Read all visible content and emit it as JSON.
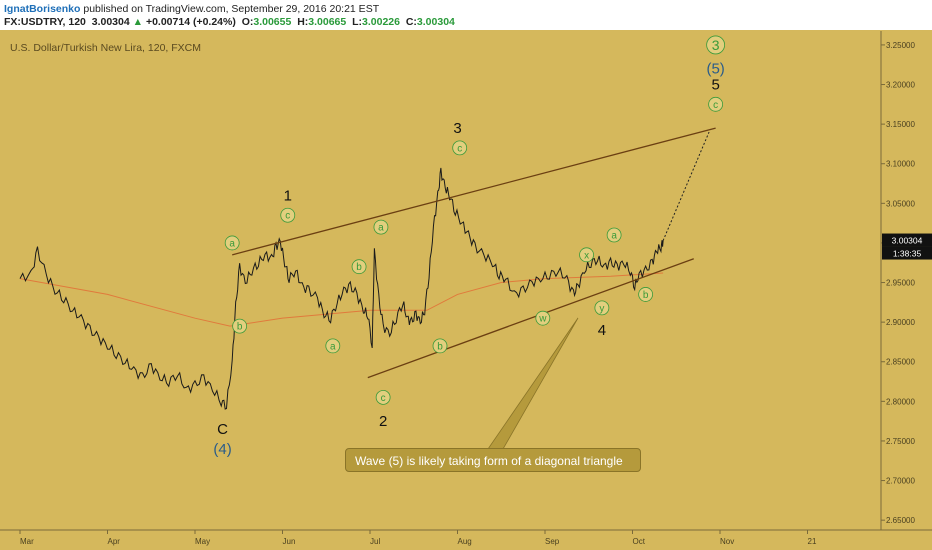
{
  "header": {
    "author": "IgnatBorisenko",
    "published_text": "published on TradingView.com, September 29, 2016 20:21 EST",
    "symbol": "FX:USDTRY, 120",
    "last": "3.00304",
    "arrow": "▲",
    "change": "+0.00714 (+0.24%)",
    "open_label": "O:",
    "open": "3.00655",
    "high_label": "H:",
    "high": "3.00665",
    "low_label": "L:",
    "low": "3.00226",
    "close_label": "C:",
    "close": "3.00304"
  },
  "callout": {
    "text": "Wave (5) is likely taking form of a diagonal triangle"
  },
  "colors": {
    "background": "#d5b85c",
    "price_line": "#1a1a1a",
    "moving_average": "#e07a3c",
    "channel": "#6b3f12",
    "label_circle_fill": "#e2cf7e",
    "label_circle_text": "#3a9a3a",
    "blue_label": "#2a5c8a",
    "price_badge": "#111111"
  },
  "chart_data": {
    "type": "line",
    "title": "U.S. Dollar/Turkish New Lira, 120, FXCM",
    "x_tick_labels": [
      "Mar",
      "Apr",
      "May",
      "Jun",
      "Jul",
      "Aug",
      "Sep",
      "Oct",
      "Nov",
      "21"
    ],
    "y_tick_labels": [
      "3.25000",
      "3.20000",
      "3.15000",
      "3.10000",
      "3.05000",
      "3.00000",
      "2.95000",
      "2.90000",
      "2.85000",
      "2.80000",
      "2.75000",
      "2.70000",
      "2.65000"
    ],
    "ylim": [
      2.63,
      3.26
    ],
    "price_badge": "3.00304",
    "time_badge": "1:38:35",
    "series": [
      {
        "values": [
          [
            0.0,
            2.955
          ],
          [
            0.25,
            2.96
          ],
          [
            0.4,
            2.99
          ],
          [
            0.6,
            2.96
          ],
          [
            0.8,
            2.94
          ],
          [
            1.0,
            2.93
          ],
          [
            1.2,
            2.915
          ],
          [
            1.4,
            2.905
          ],
          [
            1.6,
            2.89
          ],
          [
            1.8,
            2.88
          ],
          [
            2.0,
            2.87
          ],
          [
            2.2,
            2.86
          ],
          [
            2.4,
            2.85
          ],
          [
            2.6,
            2.84
          ],
          [
            2.8,
            2.83
          ],
          [
            3.0,
            2.845
          ],
          [
            3.2,
            2.83
          ],
          [
            3.4,
            2.825
          ],
          [
            3.6,
            2.835
          ],
          [
            3.8,
            2.815
          ],
          [
            4.0,
            2.82
          ],
          [
            4.2,
            2.83
          ],
          [
            4.4,
            2.815
          ],
          [
            4.6,
            2.8
          ],
          [
            4.72,
            2.795
          ],
          [
            4.85,
            2.85
          ],
          [
            4.93,
            2.92
          ],
          [
            5.02,
            2.97
          ],
          [
            5.15,
            2.95
          ],
          [
            5.3,
            2.965
          ],
          [
            5.45,
            2.975
          ],
          [
            5.6,
            2.985
          ],
          [
            5.75,
            2.98
          ],
          [
            5.85,
            2.995
          ],
          [
            5.95,
            3.002
          ],
          [
            6.05,
            2.975
          ],
          [
            6.15,
            2.955
          ],
          [
            6.3,
            2.965
          ],
          [
            6.45,
            2.945
          ],
          [
            6.6,
            2.94
          ],
          [
            6.8,
            2.93
          ],
          [
            6.95,
            2.91
          ],
          [
            7.1,
            2.905
          ],
          [
            7.25,
            2.925
          ],
          [
            7.4,
            2.94
          ],
          [
            7.55,
            2.945
          ],
          [
            7.7,
            2.935
          ],
          [
            7.85,
            2.915
          ],
          [
            7.95,
            2.91
          ],
          [
            8.05,
            2.87
          ],
          [
            8.1,
            2.99
          ],
          [
            8.2,
            2.93
          ],
          [
            8.3,
            2.895
          ],
          [
            8.45,
            2.885
          ],
          [
            8.6,
            2.905
          ],
          [
            8.75,
            2.925
          ],
          [
            8.85,
            2.905
          ],
          [
            8.95,
            2.9
          ],
          [
            9.05,
            2.91
          ],
          [
            9.15,
            2.9
          ],
          [
            9.25,
            2.915
          ],
          [
            9.35,
            2.96
          ],
          [
            9.45,
            3.02
          ],
          [
            9.55,
            3.06
          ],
          [
            9.62,
            3.09
          ],
          [
            9.72,
            3.07
          ],
          [
            9.82,
            3.06
          ],
          [
            9.95,
            3.04
          ],
          [
            10.1,
            3.025
          ],
          [
            10.25,
            3.01
          ],
          [
            10.4,
            2.995
          ],
          [
            10.6,
            2.985
          ],
          [
            10.8,
            2.975
          ],
          [
            10.95,
            2.96
          ],
          [
            11.1,
            2.955
          ],
          [
            11.3,
            2.935
          ],
          [
            11.5,
            2.94
          ],
          [
            11.7,
            2.95
          ],
          [
            11.9,
            2.955
          ],
          [
            12.1,
            2.96
          ],
          [
            12.3,
            2.965
          ],
          [
            12.5,
            2.955
          ],
          [
            12.65,
            2.935
          ],
          [
            12.75,
            2.945
          ],
          [
            12.9,
            2.965
          ],
          [
            13.05,
            2.975
          ],
          [
            13.2,
            2.98
          ],
          [
            13.35,
            2.97
          ],
          [
            13.5,
            2.975
          ],
          [
            13.65,
            2.97
          ],
          [
            13.8,
            2.975
          ],
          [
            13.95,
            2.965
          ],
          [
            14.05,
            2.945
          ],
          [
            14.15,
            2.96
          ],
          [
            14.3,
            2.965
          ],
          [
            14.45,
            2.975
          ],
          [
            14.55,
            2.99
          ],
          [
            14.65,
            2.995
          ],
          [
            14.7,
            3.003
          ]
        ]
      },
      {
        "values": [
          [
            0.0,
            2.955
          ],
          [
            2.0,
            2.935
          ],
          [
            4.0,
            2.905
          ],
          [
            4.8,
            2.895
          ],
          [
            6.0,
            2.905
          ],
          [
            8.0,
            2.915
          ],
          [
            9.3,
            2.915
          ],
          [
            10.0,
            2.935
          ],
          [
            11.0,
            2.95
          ],
          [
            12.0,
            2.955
          ],
          [
            13.5,
            2.958
          ],
          [
            14.7,
            2.962
          ]
        ]
      }
    ],
    "channel_lines": [
      {
        "from": [
          4.85,
          2.985
        ],
        "to": [
          15.9,
          3.145
        ]
      },
      {
        "from": [
          7.95,
          2.83
        ],
        "to": [
          15.4,
          2.98
        ]
      }
    ],
    "projection": {
      "from": [
        14.7,
        3.003
      ],
      "to": [
        15.75,
        3.14
      ]
    },
    "wave_labels": [
      {
        "text": "C",
        "x": 4.63,
        "y": 2.765,
        "style": "plain"
      },
      {
        "text": "(4)",
        "x": 4.63,
        "y": 2.74,
        "style": "blue"
      },
      {
        "text": "1",
        "x": 6.12,
        "y": 3.06,
        "style": "plain"
      },
      {
        "text": "c",
        "x": 6.12,
        "y": 3.035,
        "style": "circle"
      },
      {
        "text": "a",
        "x": 4.85,
        "y": 3.0,
        "style": "circle"
      },
      {
        "text": "b",
        "x": 5.02,
        "y": 2.895,
        "style": "circle"
      },
      {
        "text": "b",
        "x": 7.75,
        "y": 2.97,
        "style": "circle"
      },
      {
        "text": "a",
        "x": 7.15,
        "y": 2.87,
        "style": "circle"
      },
      {
        "text": "a",
        "x": 8.25,
        "y": 3.02,
        "style": "circle"
      },
      {
        "text": "c",
        "x": 8.3,
        "y": 2.805,
        "style": "circle"
      },
      {
        "text": "2",
        "x": 8.3,
        "y": 2.775,
        "style": "plain"
      },
      {
        "text": "b",
        "x": 9.6,
        "y": 2.87,
        "style": "circle"
      },
      {
        "text": "3",
        "x": 10.0,
        "y": 3.145,
        "style": "plain"
      },
      {
        "text": "c",
        "x": 10.05,
        "y": 3.12,
        "style": "circle"
      },
      {
        "text": "w",
        "x": 11.95,
        "y": 2.905,
        "style": "circle"
      },
      {
        "text": "x",
        "x": 12.95,
        "y": 2.985,
        "style": "circle"
      },
      {
        "text": "y",
        "x": 13.3,
        "y": 2.918,
        "style": "circle"
      },
      {
        "text": "4",
        "x": 13.3,
        "y": 2.89,
        "style": "plain"
      },
      {
        "text": "a",
        "x": 13.58,
        "y": 3.01,
        "style": "circle"
      },
      {
        "text": "b",
        "x": 14.3,
        "y": 2.935,
        "style": "circle"
      },
      {
        "text": "3",
        "x": 15.9,
        "y": 3.25,
        "style": "circle-big"
      },
      {
        "text": "(5)",
        "x": 15.9,
        "y": 3.22,
        "style": "blue"
      },
      {
        "text": "5",
        "x": 15.9,
        "y": 3.2,
        "style": "plain"
      },
      {
        "text": "c",
        "x": 15.9,
        "y": 3.175,
        "style": "circle"
      }
    ]
  }
}
